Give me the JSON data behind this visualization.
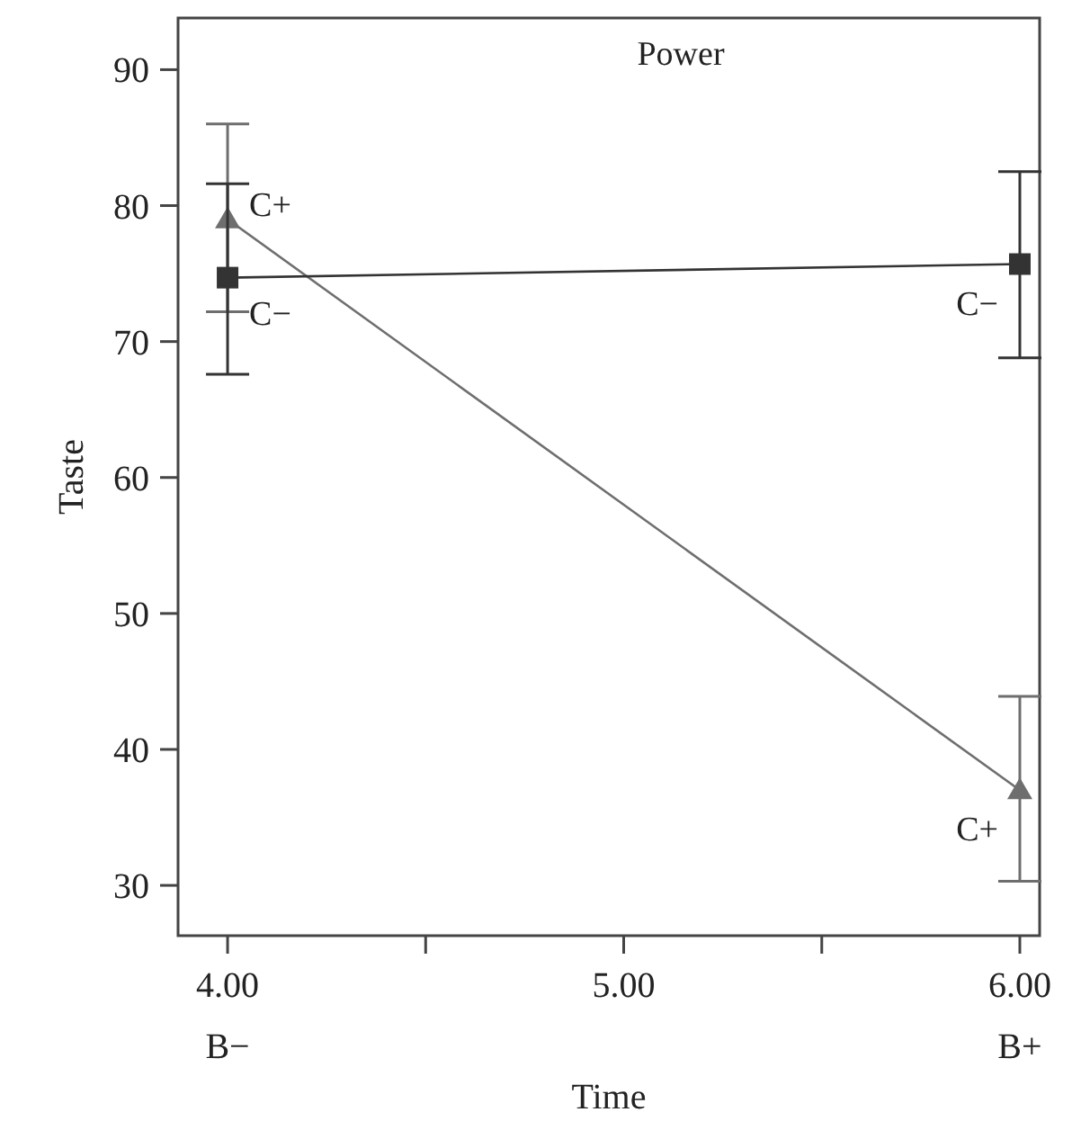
{
  "chart_data": {
    "type": "line",
    "title": "Power",
    "xlabel": "Time",
    "ylabel": "Taste",
    "x": [
      4,
      6
    ],
    "xlim": [
      3.875,
      6.05
    ],
    "xticks": [
      {
        "value": 4,
        "label": "4.00\nB−"
      },
      {
        "value": 4.5,
        "label": null
      },
      {
        "value": 5,
        "label": "5.00"
      },
      {
        "value": 5.5,
        "label": null
      },
      {
        "value": 6,
        "label": "6.00\nB+"
      }
    ],
    "ylim": [
      26.3,
      93.8
    ],
    "yticks": [
      30,
      40,
      50,
      60,
      70,
      80,
      90
    ],
    "grid": false,
    "line_style": "solid",
    "series": [
      {
        "name": "C+",
        "color": "#6e6e6e",
        "marker": "triangle",
        "values": [
          79,
          37
        ],
        "errors": [
          [
            72.2,
            86
          ],
          [
            30.3,
            43.9
          ]
        ]
      },
      {
        "name": "C−",
        "color": "#333333",
        "marker": "square",
        "values": [
          74.7,
          75.7
        ],
        "errors": [
          [
            67.6,
            81.6
          ],
          [
            68.8,
            82.5
          ]
        ]
      }
    ]
  }
}
